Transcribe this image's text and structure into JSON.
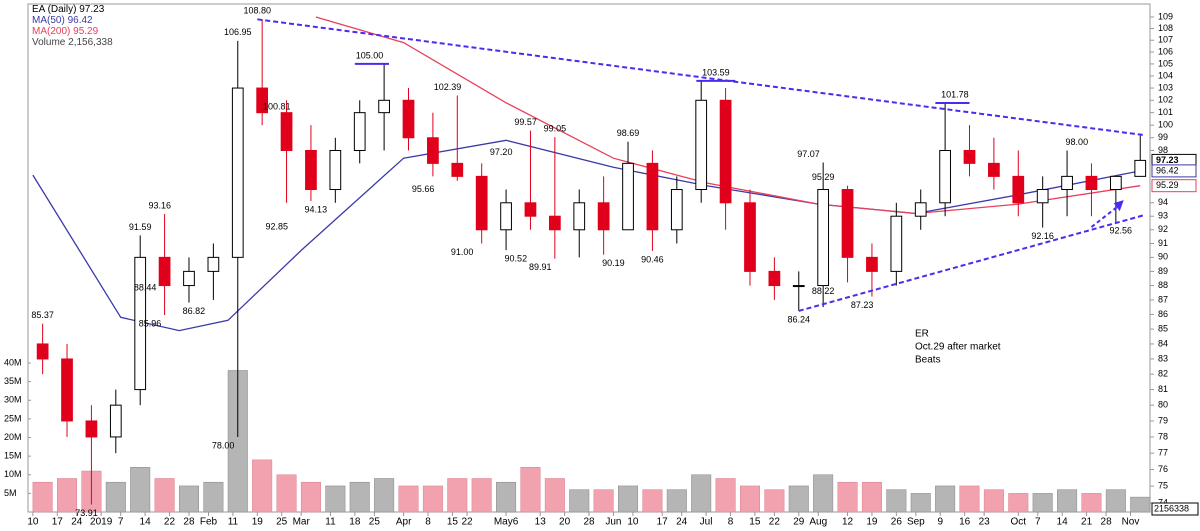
{
  "chart_data": {
    "type": "candlestick",
    "title": "EA (Daily)",
    "last_price": 97.23,
    "log_scale": true,
    "x": [
      2,
      7,
      12,
      17,
      22,
      27,
      32,
      37,
      42,
      47,
      52,
      57,
      62,
      67,
      72,
      77,
      82,
      87,
      92,
      97,
      102,
      107,
      112,
      117,
      122,
      127,
      132,
      137,
      142,
      147,
      152,
      157,
      162,
      167,
      172,
      177,
      182,
      187,
      192,
      197,
      202,
      207,
      212,
      217,
      222,
      227
    ],
    "open": [
      84,
      83,
      79,
      78,
      81,
      90,
      88,
      89,
      90,
      103,
      101,
      98,
      95,
      98,
      101,
      102,
      99,
      97,
      96,
      92,
      94,
      93,
      92,
      94,
      92,
      97,
      92,
      95,
      102,
      94,
      89,
      88,
      88,
      95,
      90,
      89,
      93,
      94,
      98,
      97,
      96,
      94,
      95,
      96,
      95,
      96
    ],
    "high": [
      85.37,
      84,
      80,
      81,
      91.59,
      93.16,
      90,
      91,
      106.95,
      108.8,
      102,
      100,
      99,
      102,
      105,
      103,
      101,
      102.39,
      97,
      95,
      99.57,
      99.05,
      95,
      96,
      98.69,
      98,
      96,
      103.59,
      103,
      95,
      90,
      89,
      97.07,
      95.29,
      91,
      94,
      95,
      101.78,
      100,
      99,
      98,
      96,
      98,
      97,
      96,
      99.2
    ],
    "low": [
      82,
      78,
      73.91,
      77,
      80,
      85.96,
      86.82,
      87,
      78,
      100,
      94,
      94.13,
      94,
      97,
      98,
      98,
      96,
      95.66,
      91,
      90.52,
      92,
      89.91,
      90,
      90.19,
      92,
      90.46,
      91,
      94,
      92,
      88,
      87,
      86.24,
      86.5,
      88.22,
      87.23,
      88,
      92,
      93,
      96,
      95,
      93,
      92.16,
      93,
      93,
      92.56,
      96
    ],
    "close": [
      83,
      79,
      78,
      80,
      90,
      88,
      89,
      90,
      103,
      101,
      98,
      95,
      98,
      101,
      102,
      99,
      97,
      96,
      92,
      94,
      93,
      92,
      94,
      92,
      97,
      92,
      95,
      102,
      94,
      89,
      88,
      88,
      95,
      90,
      89,
      93,
      94,
      98,
      97,
      96,
      94,
      95,
      96,
      95,
      96,
      97.23
    ],
    "volume": [
      8000000,
      9000000,
      11000000,
      8000000,
      12000000,
      9000000,
      7000000,
      8000000,
      38000000,
      14000000,
      10000000,
      8000000,
      7000000,
      8000000,
      9000000,
      7000000,
      7000000,
      9000000,
      9000000,
      8000000,
      12000000,
      9000000,
      6000000,
      6000000,
      7000000,
      6000000,
      6000000,
      10000000,
      9000000,
      7000000,
      6000000,
      7000000,
      10000000,
      8000000,
      8000000,
      6000000,
      5000000,
      7000000,
      7000000,
      6000000,
      5000000,
      5000000,
      6000000,
      5000000,
      6000000,
      4000000
    ],
    "up_color": "#000000",
    "down_color": "#e0001b",
    "volume_up_color": "#b5b5b5",
    "volume_down_color": "#f2a2ae",
    "xlim": [
      -1,
      229
    ],
    "ylim": [
      74,
      109
    ],
    "volume_ylim": [
      0,
      40000000
    ],
    "yticks": [
      74,
      75,
      76,
      77,
      78,
      79,
      80,
      81,
      82,
      83,
      84,
      85,
      86,
      87,
      88,
      89,
      90,
      91,
      92,
      93,
      94,
      98,
      99,
      100,
      101,
      102,
      103,
      104,
      105,
      106,
      107,
      108,
      109
    ],
    "volume_yticks": [
      {
        "value": 5000000,
        "label": "5M"
      },
      {
        "value": 10000000,
        "label": "10M"
      },
      {
        "value": 15000000,
        "label": "15M"
      },
      {
        "value": 20000000,
        "label": "20M"
      },
      {
        "value": 25000000,
        "label": "25M"
      },
      {
        "value": 30000000,
        "label": "30M"
      },
      {
        "value": 35000000,
        "label": "35M"
      },
      {
        "value": 40000000,
        "label": "40M"
      }
    ],
    "xticks": [
      {
        "value": 0,
        "label": "10"
      },
      {
        "value": 5,
        "label": "17"
      },
      {
        "value": 9,
        "label": "24"
      },
      {
        "value": 14,
        "label": "2019"
      },
      {
        "value": 18,
        "label": "7"
      },
      {
        "value": 23,
        "label": "14"
      },
      {
        "value": 28,
        "label": "22"
      },
      {
        "value": 32,
        "label": "28"
      },
      {
        "value": 36,
        "label": "Feb"
      },
      {
        "value": 41,
        "label": "11"
      },
      {
        "value": 46,
        "label": "19"
      },
      {
        "value": 51,
        "label": "25"
      },
      {
        "value": 55,
        "label": "Mar"
      },
      {
        "value": 61,
        "label": "11"
      },
      {
        "value": 66,
        "label": "18"
      },
      {
        "value": 70,
        "label": "25"
      },
      {
        "value": 76,
        "label": "Apr"
      },
      {
        "value": 81,
        "label": "8"
      },
      {
        "value": 86,
        "label": "15"
      },
      {
        "value": 89,
        "label": "22"
      },
      {
        "value": 97,
        "label": "May6"
      },
      {
        "value": 104,
        "label": "13"
      },
      {
        "value": 109,
        "label": "20"
      },
      {
        "value": 114,
        "label": "28"
      },
      {
        "value": 119,
        "label": "Jun"
      },
      {
        "value": 123,
        "label": "10"
      },
      {
        "value": 129,
        "label": "17"
      },
      {
        "value": 133,
        "label": "24"
      },
      {
        "value": 138,
        "label": "Jul"
      },
      {
        "value": 143,
        "label": "8"
      },
      {
        "value": 148,
        "label": "15"
      },
      {
        "value": 152,
        "label": "22"
      },
      {
        "value": 157,
        "label": "29"
      },
      {
        "value": 161,
        "label": "Aug"
      },
      {
        "value": 167,
        "label": "12"
      },
      {
        "value": 172,
        "label": "19"
      },
      {
        "value": 177,
        "label": "26"
      },
      {
        "value": 181,
        "label": "Sep"
      },
      {
        "value": 186,
        "label": "9"
      },
      {
        "value": 191,
        "label": "16"
      },
      {
        "value": 195,
        "label": "23"
      },
      {
        "value": 202,
        "label": "Oct"
      },
      {
        "value": 206,
        "label": "7"
      },
      {
        "value": 211,
        "label": "14"
      },
      {
        "value": 216,
        "label": "21"
      },
      {
        "value": 220,
        "label": "28"
      },
      {
        "value": 225,
        "label": "Nov"
      }
    ],
    "overlays": [
      {
        "name": "MA(50)",
        "last": 96.42,
        "color": "#3a3aa8",
        "x": [
          0,
          18,
          30,
          40,
          55,
          76,
          97,
          119,
          138,
          161,
          181,
          202,
          227
        ],
        "values": [
          96.1,
          85.8,
          84.9,
          85.6,
          90.5,
          97.4,
          98.8,
          96.7,
          95.3,
          93.9,
          93.2,
          94.6,
          96.42
        ]
      },
      {
        "name": "MA(200)",
        "last": 95.29,
        "color": "#e8405a",
        "x": [
          58,
          76,
          97,
          119,
          138,
          161,
          181,
          202,
          227
        ],
        "values": [
          109,
          106.8,
          101.8,
          97.4,
          95.5,
          93.9,
          93.2,
          93.9,
          95.29
        ]
      }
    ],
    "volume_name": "Volume",
    "volume_last": {
      "value": 2156338,
      "label": "2,156,338"
    },
    "annotations": [
      {
        "x": 2,
        "value": 85.37
      },
      {
        "x": 11,
        "value": 73.91
      },
      {
        "x": 22,
        "value": 91.59
      },
      {
        "x": 26,
        "value": 93.16
      },
      {
        "x": 23,
        "value": 88.44
      },
      {
        "x": 24,
        "value": 85.96
      },
      {
        "x": 33,
        "value": 86.82
      },
      {
        "x": 39,
        "value": 78.0,
        "label": "78.00"
      },
      {
        "x": 42,
        "value": 106.95
      },
      {
        "x": 46,
        "value": 108.8,
        "label": "108.80"
      },
      {
        "x": 50,
        "value": 100.81
      },
      {
        "x": 50,
        "value": 92.85
      },
      {
        "x": 58,
        "value": 94.13
      },
      {
        "x": 69,
        "value": 105.0,
        "label": "105.00"
      },
      {
        "x": 85,
        "value": 102.39
      },
      {
        "x": 80,
        "value": 95.66
      },
      {
        "x": 88,
        "value": 91.0,
        "label": "91.00"
      },
      {
        "x": 96,
        "value": 97.2,
        "label": "97.20"
      },
      {
        "x": 101,
        "value": 99.57
      },
      {
        "x": 107,
        "value": 99.05
      },
      {
        "x": 99,
        "value": 90.52
      },
      {
        "x": 104,
        "value": 89.91
      },
      {
        "x": 122,
        "value": 98.69
      },
      {
        "x": 119,
        "value": 90.19
      },
      {
        "x": 127,
        "value": 90.46
      },
      {
        "x": 140,
        "value": 103.59
      },
      {
        "x": 159,
        "value": 97.07
      },
      {
        "x": 162,
        "value": 95.29
      },
      {
        "x": 162,
        "value": 88.22
      },
      {
        "x": 157,
        "value": 86.24
      },
      {
        "x": 170,
        "value": 87.23
      },
      {
        "x": 189,
        "value": 101.78
      },
      {
        "x": 214,
        "value": 98.0,
        "label": "98.00"
      },
      {
        "x": 207,
        "value": 92.16
      },
      {
        "x": 223,
        "value": 92.56
      }
    ],
    "annotation_side": [
      "above",
      "below",
      "above",
      "above",
      "below",
      "below",
      "below",
      "below",
      "above",
      "above",
      "above",
      "below",
      "below",
      "above",
      "above",
      "below",
      "below",
      "above",
      "above",
      "above",
      "below",
      "below",
      "above",
      "below",
      "below",
      "above",
      "above",
      "above",
      "below",
      "below",
      "below",
      "above",
      "above",
      "below",
      "below"
    ],
    "trendlines": [
      {
        "x": [
          46,
          228
        ],
        "values": [
          108.8,
          99.2
        ]
      },
      {
        "x": [
          157,
          228
        ],
        "values": [
          86.24,
          93.1
        ]
      }
    ],
    "levels": [
      {
        "x": [
          66,
          73
        ],
        "values": [
          105.0,
          105.0
        ]
      },
      {
        "x": [
          136,
          144
        ],
        "values": [
          103.59,
          103.59
        ]
      },
      {
        "x": [
          185,
          192
        ],
        "values": [
          101.78,
          101.78
        ]
      }
    ],
    "arrow": {
      "x": [
        217,
        223
      ],
      "values": [
        92.2,
        93.9
      ]
    },
    "trend_color": "#4b2bf0",
    "note": [
      "ER",
      "Oct.29 after market",
      "Beats"
    ]
  }
}
